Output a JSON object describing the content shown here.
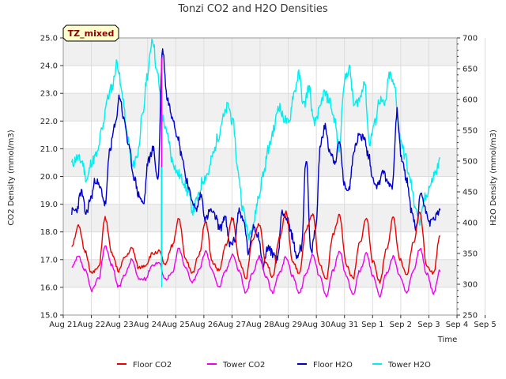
{
  "chart_data": {
    "type": "line",
    "title": "Tonzi CO2 and H2O Densities",
    "badge": "TZ_mixed",
    "xlabel": "Time",
    "ylabel_left": "CO2 Density (mmol/m3)",
    "ylabel_right": "H2O Density (mmol/m3)",
    "ylim_left": [
      15.0,
      25.0
    ],
    "ylim_right": [
      250,
      700
    ],
    "xlim": [
      0,
      14
    ],
    "x_tick_labels": [
      "Aug 21",
      "Aug 22",
      "Aug 23",
      "Aug 24",
      "Aug 25",
      "Aug 26",
      "Aug 27",
      "Aug 28",
      "Aug 29",
      "Aug 30",
      "Aug 31",
      "Sep 1",
      "Sep 2",
      "Sep 3",
      "Sep 4",
      "Sep 5"
    ],
    "y_left_ticks": [
      "15.0",
      "16.0",
      "17.0",
      "18.0",
      "19.0",
      "20.0",
      "21.0",
      "22.0",
      "23.0",
      "24.0",
      "25.0"
    ],
    "y_right_ticks": [
      "250",
      "300",
      "350",
      "400",
      "450",
      "500",
      "550",
      "600",
      "650",
      "700"
    ],
    "grid": true,
    "legend_position": "bottom",
    "colors": {
      "floor_co2": "#ee0000",
      "tower_co2": "#ee00ee",
      "floor_h2o": "#0000cc",
      "tower_h2o": "#00eeee",
      "band": "#f0f0f0",
      "badge_bg": "#ffffcc"
    },
    "series": [
      {
        "name": "Floor CO2",
        "axis": "left",
        "color": "#ee0000",
        "x_start": 0.3,
        "x_end": 13.4,
        "daily_min": [
          17.6,
          16.5,
          16.6,
          16.8,
          16.7,
          16.4,
          16.6,
          16.3,
          16.4,
          16.4,
          16.3,
          16.3,
          16.3,
          16.4
        ],
        "daily_max": [
          18.2,
          18.5,
          17.4,
          17.6,
          18.5,
          18.4,
          18.5,
          18.3,
          18.7,
          18.6,
          18.6,
          18.5,
          18.5,
          18.7
        ],
        "values": [
          17.5,
          18.2,
          17.3,
          16.5,
          16.7,
          18.5,
          17.2,
          16.6,
          17.1,
          17.4,
          16.7,
          16.8,
          17.2,
          17.3,
          16.8,
          17.5,
          18.5,
          17.0,
          16.5,
          17.2,
          18.4,
          16.9,
          16.6,
          17.5,
          18.5,
          17.0,
          16.3,
          17.7,
          18.3,
          16.9,
          16.4,
          17.8,
          18.7,
          16.9,
          16.5,
          18.1,
          18.6,
          16.8,
          16.3,
          17.9,
          18.6,
          16.8,
          16.3,
          17.6,
          18.5,
          16.9,
          16.2,
          17.4,
          18.5,
          17.0,
          16.4,
          17.6,
          18.7,
          16.8,
          16.5,
          17.9
        ]
      },
      {
        "name": "Tower CO2",
        "axis": "left",
        "color": "#ee00ee",
        "x_start": 0.3,
        "x_end": 13.4,
        "spike": {
          "x": 3.5,
          "value": 24.3
        },
        "daily_min": [
          16.7,
          15.9,
          16.0,
          16.3,
          16.2,
          15.9,
          16.0,
          15.8,
          15.8,
          15.8,
          15.7,
          15.7,
          15.7,
          15.8
        ],
        "daily_max": [
          17.1,
          17.5,
          17.0,
          16.9,
          17.4,
          17.3,
          17.2,
          17.1,
          17.1,
          17.2,
          17.3,
          17.2,
          17.1,
          17.4
        ],
        "values": [
          16.7,
          17.1,
          16.6,
          15.9,
          16.3,
          17.5,
          16.8,
          16.0,
          16.5,
          17.0,
          16.3,
          16.3,
          16.8,
          16.9,
          16.3,
          16.5,
          17.4,
          16.7,
          16.2,
          16.6,
          17.3,
          16.6,
          16.0,
          16.6,
          17.2,
          16.6,
          15.8,
          16.5,
          17.1,
          16.4,
          15.8,
          16.5,
          17.1,
          16.4,
          15.8,
          16.5,
          17.2,
          16.4,
          15.7,
          16.6,
          17.3,
          16.4,
          15.7,
          16.6,
          17.2,
          16.4,
          15.7,
          16.5,
          17.1,
          16.4,
          15.8,
          16.6,
          17.4,
          16.5,
          15.8,
          16.6
        ]
      },
      {
        "name": "Floor H2O",
        "axis": "right",
        "color": "#0000cc",
        "x_start": 0.3,
        "x_end": 13.4,
        "values": [
          418,
          420,
          450,
          415,
          440,
          470,
          455,
          430,
          520,
          555,
          605,
          565,
          520,
          475,
          445,
          430,
          500,
          520,
          470,
          680,
          600,
          575,
          545,
          510,
          470,
          440,
          420,
          445,
          405,
          420,
          410,
          390,
          410,
          365,
          370,
          420,
          400,
          350,
          395,
          380,
          330,
          360,
          350,
          340,
          420,
          405,
          380,
          345,
          360,
          505,
          350,
          390,
          530,
          555,
          515,
          500,
          530,
          460,
          455,
          520,
          540,
          540,
          510,
          470,
          460,
          485,
          465,
          460,
          580,
          500,
          470,
          420,
          390,
          450,
          420,
          400,
          410,
          420
        ]
      },
      {
        "name": "Tower H2O",
        "axis": "right",
        "color": "#00eeee",
        "x_start": 0.3,
        "x_end": 13.4,
        "values": [
          495,
          505,
          500,
          470,
          500,
          510,
          550,
          600,
          620,
          660,
          610,
          540,
          490,
          510,
          570,
          640,
          700,
          640,
          570,
          540,
          500,
          480,
          470,
          450,
          420,
          440,
          470,
          480,
          510,
          540,
          570,
          590,
          560,
          480,
          420,
          380,
          400,
          440,
          480,
          520,
          550,
          590,
          570,
          560,
          610,
          640,
          590,
          620,
          560,
          580,
          610,
          600,
          570,
          520,
          630,
          650,
          590,
          600,
          630,
          530,
          560,
          600,
          590,
          640,
          620,
          540,
          510,
          470,
          430,
          400,
          440,
          460,
          480,
          500
        ]
      }
    ]
  }
}
